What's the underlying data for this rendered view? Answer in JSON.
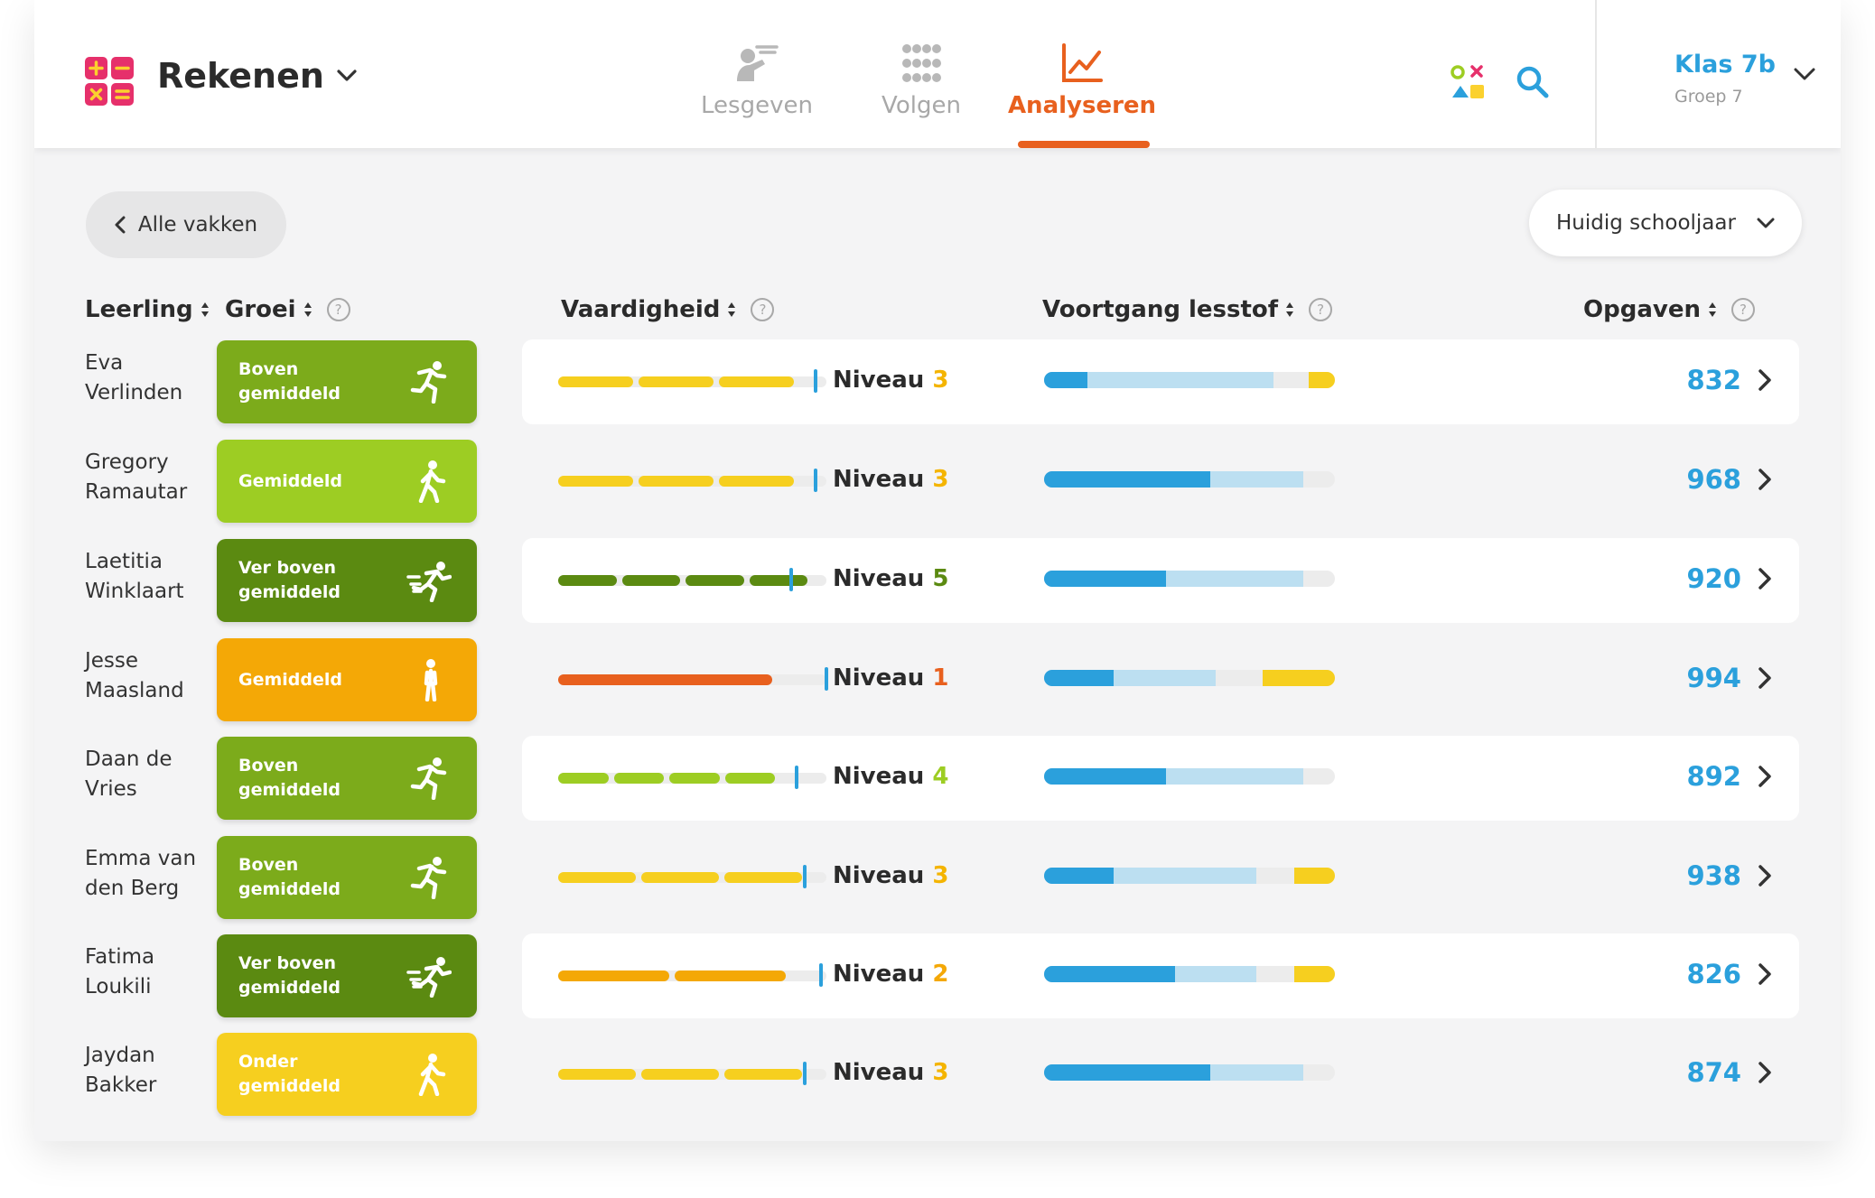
{
  "app": {
    "title": "Rekenen"
  },
  "nav": [
    {
      "label": "Lesgeven",
      "icon": "teach-icon",
      "active": false
    },
    {
      "label": "Volgen",
      "icon": "grid-dots-icon",
      "active": false
    },
    {
      "label": "Analyseren",
      "icon": "chart-line-icon",
      "active": true
    }
  ],
  "klas": {
    "name": "Klas 7b",
    "group": "Groep 7"
  },
  "back": {
    "label": "Alle vakken"
  },
  "period": {
    "label": "Huidig schooljaar"
  },
  "columns": {
    "student": "Leerling",
    "growth": "Groei",
    "skill": "Vaardigheid",
    "progress": "Voortgang lesstof",
    "tasks": "Opgaven"
  },
  "level_word": "Niveau",
  "colors": {
    "accent": "#e8601e",
    "blue": "#2ba0dc",
    "light_blue": "#bcdff1",
    "yellow": "#f6cf1f",
    "growth_above": "#7cab1b",
    "growth_avg": "#9dcd23",
    "growth_far_above": "#5b8a11",
    "growth_avg_orange": "#f4a806",
    "growth_below": "#f6cf1f"
  },
  "rows": [
    {
      "name": "Eva\nVerlinden",
      "growth": "Boven gemiddeld",
      "growth_color": "#7cab1b",
      "growth_icon": "running-icon",
      "level": "3",
      "level_color": "#f4b400",
      "skill_color": "#f6cf1f",
      "skill_segments": 3,
      "skill_fill": 0.87,
      "skill_marker": 0.95,
      "progress": {
        "dark": 0.15,
        "light": 0.79,
        "yellow_start": 0.91
      },
      "tasks": "832",
      "card": true
    },
    {
      "name": "Gregory\nRamautar",
      "growth": "Gemiddeld",
      "growth_color": "#9dcd23",
      "growth_icon": "walking-icon",
      "level": "3",
      "level_color": "#f4b400",
      "skill_color": "#f6cf1f",
      "skill_segments": 3,
      "skill_fill": 0.87,
      "skill_marker": 0.95,
      "progress": {
        "dark": 0.57,
        "light": 0.89,
        "yellow_start": null
      },
      "tasks": "968",
      "card": false
    },
    {
      "name": "Laetitia\nWinklaart",
      "growth": "Ver boven\ngemiddeld",
      "growth_color": "#5b8a11",
      "growth_icon": "sprinting-icon",
      "level": "5",
      "level_color": "#5b8a11",
      "skill_color": "#5b8a11",
      "skill_segments": 4,
      "skill_fill": 0.92,
      "skill_marker": 0.86,
      "progress": {
        "dark": 0.42,
        "light": 0.89,
        "yellow_start": null
      },
      "tasks": "920",
      "card": true
    },
    {
      "name": "Jesse\nMaasland",
      "growth": "Gemiddeld",
      "growth_color": "#f4a806",
      "growth_icon": "standing-icon",
      "level": "1",
      "level_color": "#e8601e",
      "skill_color": "#e8601e",
      "skill_segments": 1,
      "skill_fill": 0.79,
      "skill_marker": 0.99,
      "progress": {
        "dark": 0.24,
        "light": 0.59,
        "yellow_start": 0.75
      },
      "tasks": "994",
      "card": false
    },
    {
      "name": "Daan de\nVries",
      "growth": "Boven gemiddeld",
      "growth_color": "#7cab1b",
      "growth_icon": "running-icon",
      "level": "4",
      "level_color": "#9dcd23",
      "skill_color": "#9dcd23",
      "skill_segments": 4,
      "skill_fill": 0.8,
      "skill_marker": 0.88,
      "progress": {
        "dark": 0.42,
        "light": 0.89,
        "yellow_start": null
      },
      "tasks": "892",
      "card": true
    },
    {
      "name": "Emma van\nden Berg",
      "growth": "Boven gemiddeld",
      "growth_color": "#7cab1b",
      "growth_icon": "running-icon",
      "level": "3",
      "level_color": "#f4b400",
      "skill_color": "#f6cf1f",
      "skill_segments": 3,
      "skill_fill": 0.9,
      "skill_marker": 0.91,
      "progress": {
        "dark": 0.24,
        "light": 0.73,
        "yellow_start": 0.86
      },
      "tasks": "938",
      "card": false
    },
    {
      "name": "Fatima\nLoukili",
      "growth": "Ver boven\ngemiddeld",
      "growth_color": "#5b8a11",
      "growth_icon": "sprinting-icon",
      "level": "2",
      "level_color": "#f4a806",
      "skill_color": "#f4a806",
      "skill_segments": 2,
      "skill_fill": 0.84,
      "skill_marker": 0.97,
      "progress": {
        "dark": 0.45,
        "light": 0.73,
        "yellow_start": 0.86
      },
      "tasks": "826",
      "card": true
    },
    {
      "name": "Jaydan\nBakker",
      "growth": "Onder gemiddeld",
      "growth_color": "#f6cf1f",
      "growth_icon": "walking-icon",
      "level": "3",
      "level_color": "#f4b400",
      "skill_color": "#f6cf1f",
      "skill_segments": 3,
      "skill_fill": 0.9,
      "skill_marker": 0.91,
      "progress": {
        "dark": 0.57,
        "light": 0.89,
        "yellow_start": null
      },
      "tasks": "874",
      "card": false
    }
  ]
}
